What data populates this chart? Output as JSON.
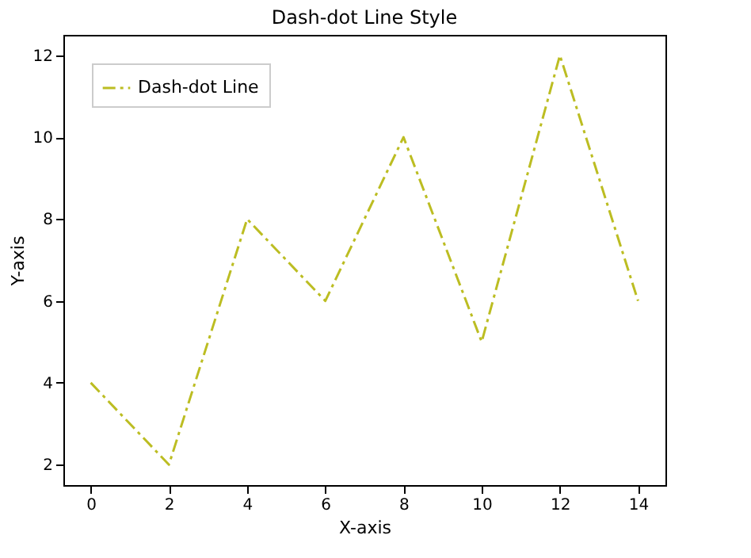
{
  "chart_data": {
    "type": "line",
    "title": "Dash-dot Line Style",
    "xlabel": "X-axis",
    "ylabel": "Y-axis",
    "x": [
      0,
      2,
      4,
      6,
      8,
      10,
      12,
      14
    ],
    "series": [
      {
        "name": "Dash-dot Line",
        "color": "#bcbd22",
        "values": [
          4,
          2,
          8,
          6,
          10,
          5,
          12,
          6
        ]
      }
    ],
    "xlim": [
      -0.7,
      14.7
    ],
    "ylim": [
      1.5,
      12.5
    ],
    "xticks": [
      0,
      2,
      4,
      6,
      8,
      10,
      12,
      14
    ],
    "yticks": [
      2,
      4,
      6,
      8,
      10,
      12
    ],
    "grid": false,
    "legend": "top left",
    "line_style": "dashed",
    "marker": "none"
  }
}
